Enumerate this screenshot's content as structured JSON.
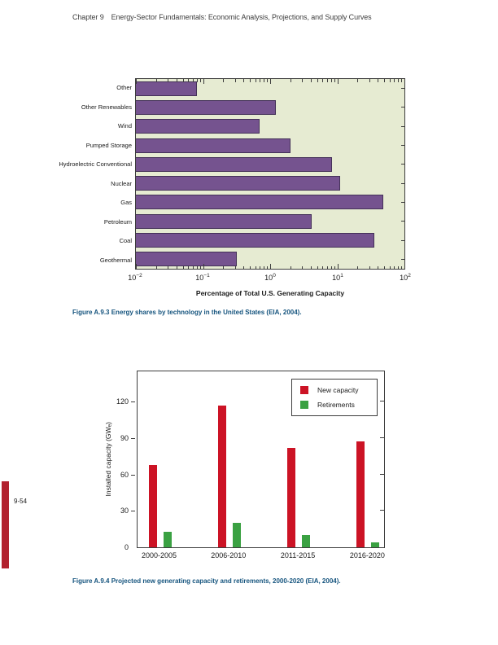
{
  "header": {
    "chapter": "Chapter 9",
    "title": "Energy-Sector Fundamentals: Economic Analysis, Projections, and Supply Curves"
  },
  "page_number": "9-54",
  "figures": {
    "a93": {
      "caption": "Figure A.9.3 Energy shares by technology in the United States (EIA, 2004)."
    },
    "a94": {
      "caption": "Figure A.9.4 Projected new generating capacity and retirements, 2000-2020 (EIA, 2004)."
    }
  },
  "colors": {
    "bar_purple": "#75538f",
    "bar_purple_outline": "#443158",
    "plot_background_green": "#e6ebd2",
    "new_capacity_red": "#cc1325",
    "retirements_green": "#3aa142",
    "caption_blue": "#15547e",
    "edge_bar_red": "#b2212e",
    "axis_gray": "#3d3d3d"
  },
  "chart_data": [
    {
      "type": "bar",
      "orientation": "horizontal",
      "title": "",
      "xlabel": "Percentage of Total U.S. Generating Capacity",
      "ylabel": "",
      "xscale": "log",
      "xlim": [
        0.01,
        100
      ],
      "x_tick_labels": [
        "10^-2",
        "10^-1",
        "10^0",
        "10^1",
        "10^2"
      ],
      "x_tick_exponents": [
        -2,
        -1,
        0,
        1,
        2
      ],
      "categories": [
        "Other",
        "Other Renewables",
        "Wind",
        "Pumped Storage",
        "Hydroelectric Conventional",
        "Nuclear",
        "Gas",
        "Petroleum",
        "Coal",
        "Geothermal"
      ],
      "values": [
        0.08,
        1.2,
        0.7,
        2.0,
        8.4,
        11,
        48,
        4.1,
        36,
        0.32
      ],
      "grid": false,
      "legend": false
    },
    {
      "type": "bar",
      "orientation": "vertical",
      "title": "",
      "xlabel": "",
      "ylabel": "Installed capacity (GWe)",
      "ylabel_parts": {
        "main": "Installed capacity (GW",
        "sub": "e",
        "end": ")"
      },
      "ylim": [
        0,
        146
      ],
      "yticks": [
        0,
        30,
        60,
        90,
        120
      ],
      "categories": [
        "2000-2005",
        "2006-2010",
        "2011-2015",
        "2016-2020"
      ],
      "series": [
        {
          "name": "New capacity",
          "color": "#cc1325",
          "values": [
            68,
            117,
            82,
            87
          ]
        },
        {
          "name": "Retirements",
          "color": "#3aa142",
          "values": [
            13,
            20,
            10,
            4
          ]
        }
      ],
      "grid": false,
      "legend_position": "top-right"
    }
  ]
}
